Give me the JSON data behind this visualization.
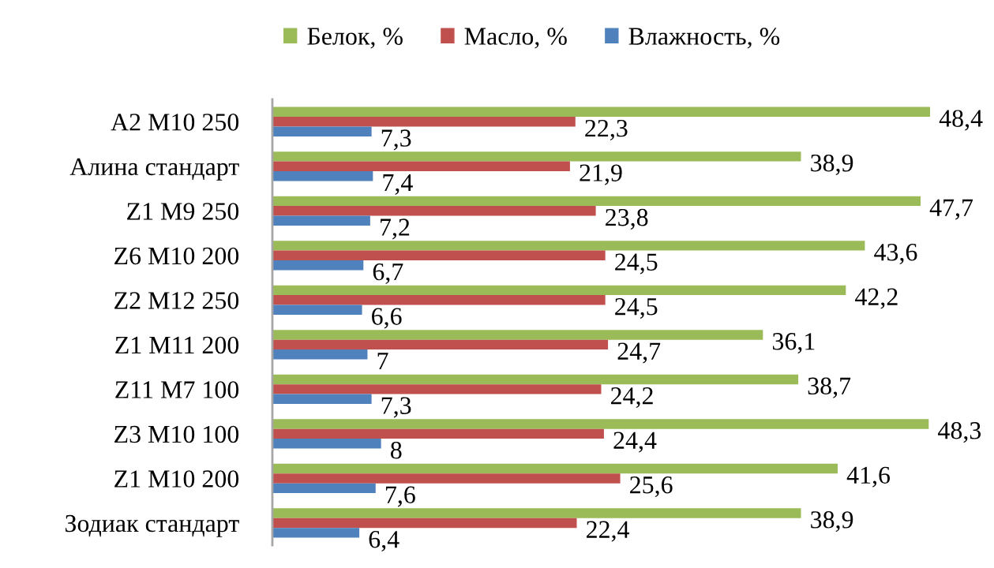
{
  "chart_data": {
    "type": "bar",
    "orientation": "horizontal",
    "legend": "top",
    "tick_labels": "y",
    "grid": false,
    "categories": [
      "A2 M10 250",
      "Алина стандарт",
      "Z1 M9 250",
      "Z6 M10 200",
      "Z2 M12 250",
      "Z1 M11 200",
      "Z11 M7 100",
      "Z3 M10 100",
      "Z1 M10 200",
      "Зодиак стандарт"
    ],
    "series": [
      {
        "name": "Белок, %",
        "color": "#9bbb59",
        "values": [
          48.4,
          38.9,
          47.7,
          43.6,
          42.2,
          36.1,
          38.7,
          48.3,
          41.6,
          38.9
        ],
        "value_labels": [
          "48,4",
          "38,9",
          "47,7",
          "43,6",
          "42,2",
          "36,1",
          "38,7",
          "48,3",
          "41,6",
          "38,9"
        ]
      },
      {
        "name": "Масло, %",
        "color": "#c0504d",
        "values": [
          22.3,
          21.9,
          23.8,
          24.5,
          24.5,
          24.7,
          24.2,
          24.4,
          25.6,
          22.4
        ],
        "value_labels": [
          "22,3",
          "21,9",
          "23,8",
          "24,5",
          "24,5",
          "24,7",
          "24,2",
          "24,4",
          "25,6",
          "22,4"
        ]
      },
      {
        "name": "Влажность, %",
        "color": "#4f81bd",
        "values": [
          7.3,
          7.4,
          7.2,
          6.7,
          6.6,
          7,
          7.3,
          8,
          7.6,
          6.4
        ],
        "value_labels": [
          "7,3",
          "7,4",
          "7,2",
          "6,7",
          "6,6",
          "7",
          "7,3",
          "8",
          "7,6",
          "6,4"
        ]
      }
    ]
  }
}
